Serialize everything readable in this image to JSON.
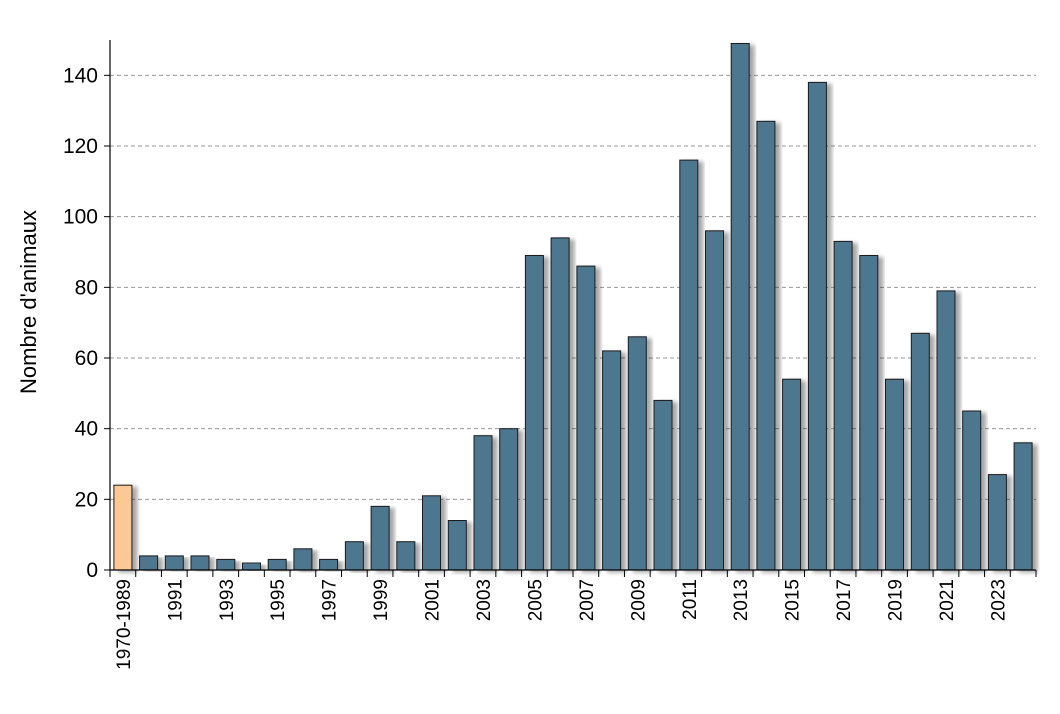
{
  "chart_data": {
    "type": "bar",
    "title": "",
    "xlabel": "",
    "ylabel": "Nombre d'animaux",
    "ylim": [
      0,
      150
    ],
    "yticks": [
      0,
      20,
      40,
      60,
      80,
      100,
      120,
      140
    ],
    "grid": "horizontal-dashed",
    "categories": [
      "1970-1989",
      "1990",
      "1991",
      "1992",
      "1993",
      "1994",
      "1995",
      "1996",
      "1997",
      "1998",
      "1999",
      "2000",
      "2001",
      "2002",
      "2003",
      "2004",
      "2005",
      "2006",
      "2007",
      "2008",
      "2009",
      "2010",
      "2011",
      "2012",
      "2013",
      "2014",
      "2015",
      "2016",
      "2017",
      "2018",
      "2019",
      "2020",
      "2021",
      "2022",
      "2023",
      "2024"
    ],
    "xtick_labels": [
      "1970-1989",
      "",
      "1991",
      "",
      "1993",
      "",
      "1995",
      "",
      "1997",
      "",
      "1999",
      "",
      "2001",
      "",
      "2003",
      "",
      "2005",
      "",
      "2007",
      "",
      "2009",
      "",
      "2011",
      "",
      "2013",
      "",
      "2015",
      "",
      "2017",
      "",
      "2019",
      "",
      "2021",
      "",
      "2023",
      ""
    ],
    "values": [
      24,
      4,
      4,
      4,
      3,
      2,
      3,
      6,
      3,
      8,
      18,
      8,
      21,
      14,
      38,
      40,
      89,
      94,
      86,
      62,
      66,
      48,
      116,
      96,
      149,
      127,
      54,
      138,
      93,
      89,
      54,
      67,
      79,
      45,
      27,
      36
    ],
    "colors": {
      "first_bar": "#FCC994",
      "bars": "#4E778F",
      "bar_border": "#1a1a1a",
      "shadow": "#b8b8b8",
      "grid": "#9a9a9a",
      "axis": "#000000"
    }
  }
}
